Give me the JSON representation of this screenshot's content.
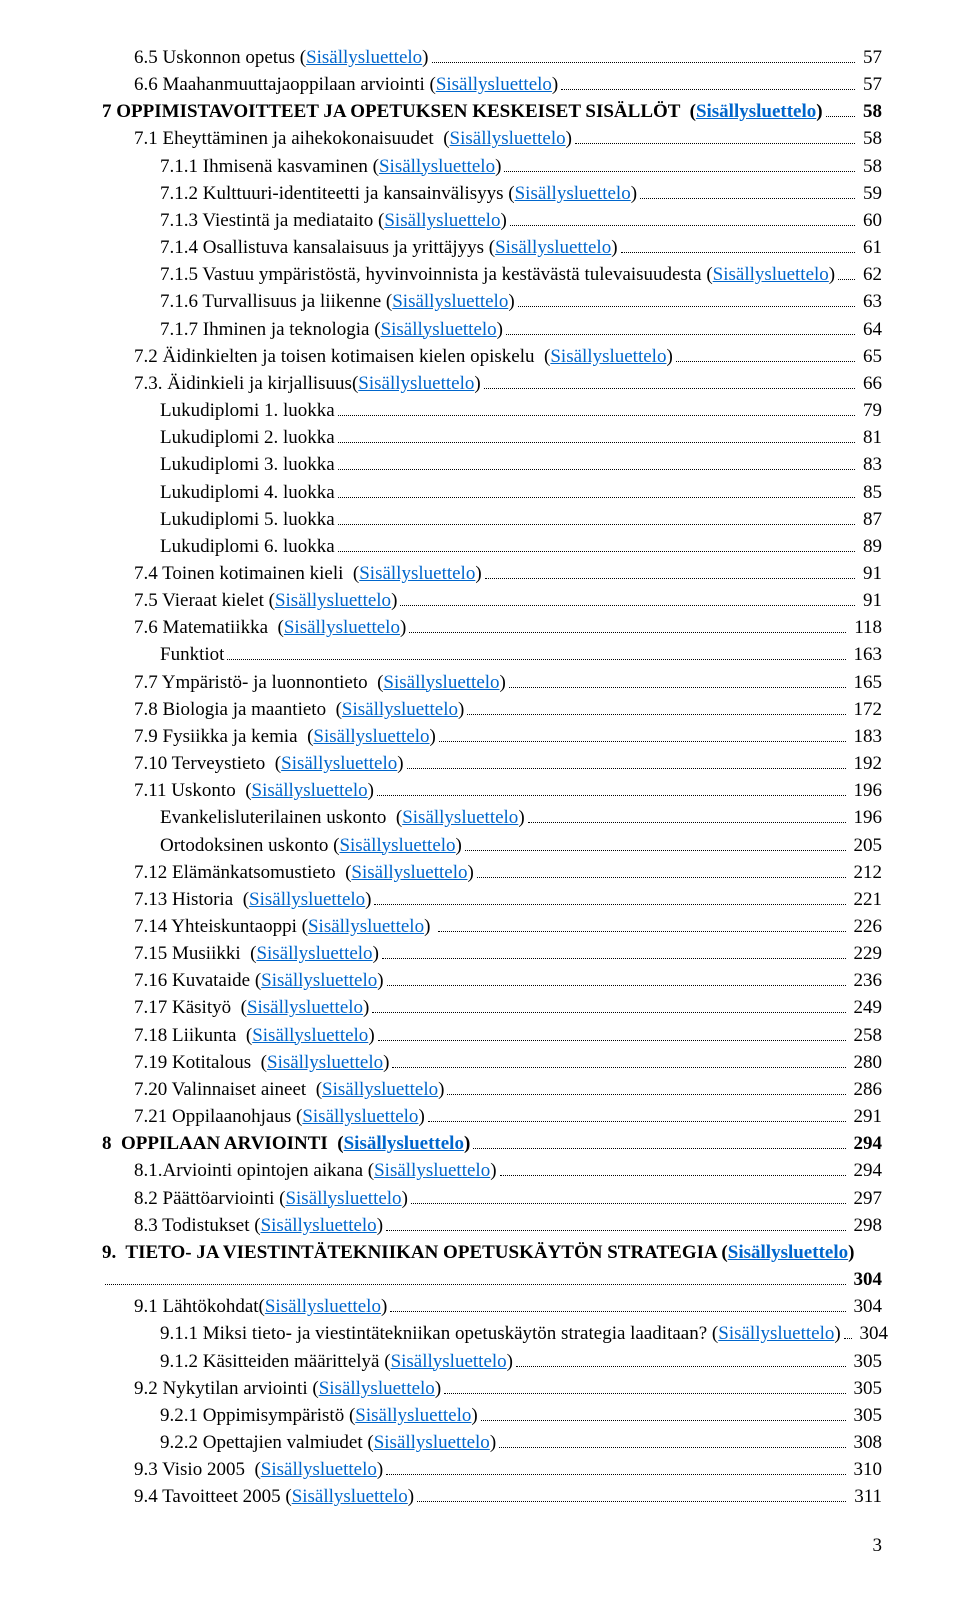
{
  "link_text": "Sisällysluettelo",
  "page_number": "3",
  "entries": [
    {
      "indent": 1,
      "pre": "6.5 Uskonnon opetus (",
      "post": ")",
      "page": "57"
    },
    {
      "indent": 1,
      "pre": "6.6 Maahanmuuttajaoppilaan arviointi (",
      "post": ")",
      "page": "57"
    },
    {
      "indent": 0,
      "bold": true,
      "pre": "7 OPPIMISTAVOITTEET JA OPETUKSEN KESKEISET SISÄLLÖT  (",
      "post": ")",
      "page": "58"
    },
    {
      "indent": 1,
      "pre": "7.1 Eheyttäminen ja aihekokonaisuudet  (",
      "post": ")",
      "page": "58"
    },
    {
      "indent": 2,
      "pre": "7.1.1 Ihmisenä kasvaminen (",
      "post": ")",
      "page": "58"
    },
    {
      "indent": 2,
      "pre": "7.1.2 Kulttuuri-identiteetti ja kansainvälisyys (",
      "post": ")",
      "page": "59"
    },
    {
      "indent": 2,
      "pre": "7.1.3 Viestintä ja mediataito (",
      "post": ")",
      "page": "60"
    },
    {
      "indent": 2,
      "pre": "7.1.4 Osallistuva kansalaisuus ja yrittäjyys (",
      "post": ")",
      "page": "61"
    },
    {
      "indent": 2,
      "pre": "7.1.5 Vastuu ympäristöstä, hyvinvoinnista ja kestävästä tulevaisuudesta (",
      "post": ")",
      "page": "62"
    },
    {
      "indent": 2,
      "pre": "7.1.6 Turvallisuus ja liikenne (",
      "post": ")",
      "page": "63"
    },
    {
      "indent": 2,
      "pre": "7.1.7 Ihminen ja teknologia (",
      "post": ")",
      "page": "64"
    },
    {
      "indent": 1,
      "pre": "7.2 Äidinkielten ja toisen kotimaisen kielen opiskelu  (",
      "post": ")",
      "page": "65"
    },
    {
      "indent": 1,
      "pre": "7.3. Äidinkieli ja kirjallisuus(",
      "post": ")",
      "page": "66"
    },
    {
      "indent": 2,
      "pre": "Lukudiplomi 1. luokka",
      "page": "79"
    },
    {
      "indent": 2,
      "pre": "Lukudiplomi 2. luokka",
      "page": "81"
    },
    {
      "indent": 2,
      "pre": "Lukudiplomi 3. luokka",
      "page": "83"
    },
    {
      "indent": 2,
      "pre": "Lukudiplomi 4. luokka",
      "page": "85"
    },
    {
      "indent": 2,
      "pre": "Lukudiplomi 5. luokka",
      "page": "87"
    },
    {
      "indent": 2,
      "pre": "Lukudiplomi 6. luokka",
      "page": "89"
    },
    {
      "indent": 1,
      "pre": "7.4 Toinen kotimainen kieli  (",
      "post": ")",
      "page": "91"
    },
    {
      "indent": 1,
      "pre": "7.5 Vieraat kielet (",
      "post": ")",
      "page": "91"
    },
    {
      "indent": 1,
      "pre": "7.6 Matematiikka  (",
      "post": ")",
      "page": "118"
    },
    {
      "indent": 2,
      "pre": "Funktiot",
      "page": "163"
    },
    {
      "indent": 1,
      "pre": "7.7 Ympäristö- ja luonnontieto  (",
      "post": ")",
      "page": "165"
    },
    {
      "indent": 1,
      "pre": "7.8 Biologia ja maantieto  (",
      "post": ")",
      "page": "172"
    },
    {
      "indent": 1,
      "pre": "7.9 Fysiikka ja kemia  (",
      "post": ")",
      "page": "183"
    },
    {
      "indent": 1,
      "pre": "7.10 Terveystieto  (",
      "post": ")",
      "page": "192"
    },
    {
      "indent": 1,
      "pre": "7.11 Uskonto  (",
      "post": ")",
      "page": "196"
    },
    {
      "indent": 2,
      "pre": "Evankelisluterilainen uskonto  (",
      "post": ")",
      "page": "196"
    },
    {
      "indent": 2,
      "pre": "Ortodoksinen uskonto (",
      "post": ")",
      "page": "205"
    },
    {
      "indent": 1,
      "pre": "7.12 Elämänkatsomustieto  (",
      "post": ")",
      "page": "212"
    },
    {
      "indent": 1,
      "pre": "7.13 Historia  (",
      "post": ")",
      "page": "221"
    },
    {
      "indent": 1,
      "pre": "7.14 Yhteiskuntaoppi (",
      "post": ") ",
      "page": "226"
    },
    {
      "indent": 1,
      "pre": "7.15 Musiikki  (",
      "post": ")",
      "page": "229"
    },
    {
      "indent": 1,
      "pre": "7.16 Kuvataide (",
      "post": ")",
      "page": "236"
    },
    {
      "indent": 1,
      "pre": "7.17 Käsityö  (",
      "post": ")",
      "page": "249"
    },
    {
      "indent": 1,
      "pre": "7.18 Liikunta  (",
      "post": ")",
      "page": "258"
    },
    {
      "indent": 1,
      "pre": "7.19 Kotitalous  (",
      "post": ")",
      "page": "280"
    },
    {
      "indent": 1,
      "pre": "7.20 Valinnaiset aineet  (",
      "post": ")",
      "page": "286"
    },
    {
      "indent": 1,
      "pre": "7.21 Oppilaanohjaus (",
      "post": ")",
      "page": "291"
    },
    {
      "indent": 0,
      "bold": true,
      "pre": "8  OPPILAAN ARVIOINTI  (",
      "post": ")",
      "page": "294"
    },
    {
      "indent": 1,
      "pre": "8.1.Arviointi opintojen aikana (",
      "post": ")",
      "page": "294"
    },
    {
      "indent": 1,
      "pre": "8.2 Päättöarviointi (",
      "post": ")",
      "page": "297"
    },
    {
      "indent": 1,
      "pre": "8.3 Todistukset (",
      "post": ")",
      "page": "298"
    },
    {
      "indent": 0,
      "bold": true,
      "special": "two-line",
      "pre": "9.  TIETO- JA VIESTINTÄTEKNIIKAN OPETUSKÄYTÖN STRATEGIA (",
      "post": ")",
      "page": "304"
    },
    {
      "indent": 1,
      "pre": "9.1 Lähtökohdat(",
      "post": ")",
      "page": "304"
    },
    {
      "indent": 2,
      "pre": "9.1.1 Miksi tieto- ja viestintätekniikan opetuskäytön strategia laaditaan? (",
      "post": ")",
      "page": "304"
    },
    {
      "indent": 2,
      "pre": "9.1.2 Käsitteiden määrittelyä (",
      "post": ")",
      "page": "305"
    },
    {
      "indent": 1,
      "pre": "9.2 Nykytilan arviointi (",
      "post": ")",
      "page": "305"
    },
    {
      "indent": 2,
      "pre": "9.2.1 Oppimisympäristö (",
      "post": ")",
      "page": "305"
    },
    {
      "indent": 2,
      "pre": "9.2.2 Opettajien valmiudet (",
      "post": ")",
      "page": "308"
    },
    {
      "indent": 1,
      "pre": "9.3 Visio 2005  (",
      "post": ")",
      "page": "310"
    },
    {
      "indent": 1,
      "pre": "9.4 Tavoitteet 2005 (",
      "post": ")",
      "page": "311"
    }
  ]
}
